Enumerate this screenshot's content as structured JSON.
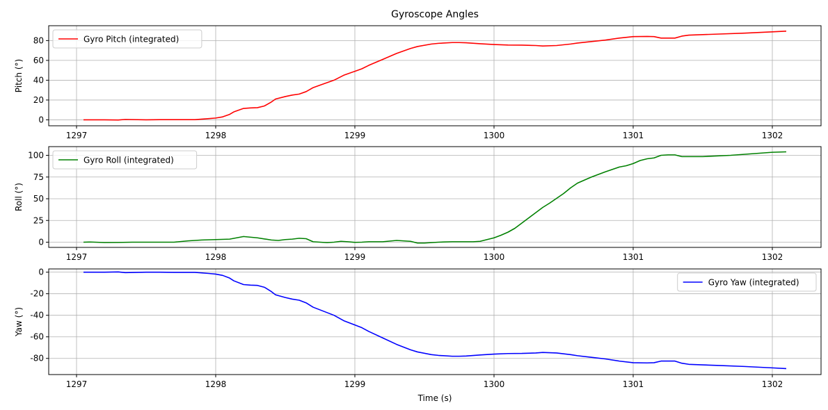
{
  "chart_data": [
    {
      "type": "line",
      "title": "Gyroscope Angles",
      "xlabel": "",
      "ylabel": "Pitch (°)",
      "xlim": [
        1296.8,
        1302.35
      ],
      "ylim": [
        -6,
        95
      ],
      "xticks": [
        1297,
        1298,
        1299,
        1300,
        1301,
        1302
      ],
      "yticks": [
        0,
        20,
        40,
        60,
        80
      ],
      "grid": true,
      "legend": "upper left",
      "series": [
        {
          "name": "Gyro Pitch (integrated)",
          "color": "#ff0000",
          "x": [
            1297.05,
            1297.2,
            1297.3,
            1297.35,
            1297.5,
            1297.6,
            1297.7,
            1297.85,
            1297.95,
            1298.0,
            1298.05,
            1298.1,
            1298.13,
            1298.2,
            1298.25,
            1298.3,
            1298.35,
            1298.4,
            1298.43,
            1298.5,
            1298.55,
            1298.6,
            1298.65,
            1298.7,
            1298.75,
            1298.85,
            1298.92,
            1299.0,
            1299.05,
            1299.1,
            1299.2,
            1299.3,
            1299.4,
            1299.45,
            1299.55,
            1299.6,
            1299.7,
            1299.75,
            1299.8,
            1299.9,
            1300.0,
            1300.1,
            1300.2,
            1300.3,
            1300.35,
            1300.45,
            1300.55,
            1300.6,
            1300.7,
            1300.8,
            1300.9,
            1301.0,
            1301.1,
            1301.15,
            1301.2,
            1301.25,
            1301.3,
            1301.35,
            1301.4,
            1301.5,
            1301.6,
            1301.8,
            1302.0,
            1302.1
          ],
          "y": [
            0,
            0,
            -0.2,
            0.4,
            0,
            0.2,
            0.2,
            0.2,
            1.2,
            1.8,
            3,
            5.5,
            8,
            11.5,
            12,
            12.3,
            14,
            18,
            21,
            23.5,
            25,
            26,
            28.5,
            32.5,
            35,
            40,
            45,
            49,
            51.5,
            55,
            61,
            67,
            72,
            74,
            76.5,
            77.2,
            78,
            78,
            77.8,
            76.8,
            76,
            75.5,
            75.4,
            75,
            74.5,
            75,
            76.5,
            77.5,
            79,
            80.5,
            82.5,
            84,
            84.2,
            84,
            82.5,
            82.5,
            82.5,
            84.5,
            85.5,
            86,
            86.5,
            87.5,
            88.8,
            89.5
          ]
        }
      ]
    },
    {
      "type": "line",
      "title": "",
      "xlabel": "",
      "ylabel": "Roll (°)",
      "xlim": [
        1296.8,
        1302.35
      ],
      "ylim": [
        -6,
        110
      ],
      "xticks": [
        1297,
        1298,
        1299,
        1300,
        1301,
        1302
      ],
      "yticks": [
        0,
        25,
        50,
        75,
        100
      ],
      "grid": true,
      "legend": "upper left",
      "series": [
        {
          "name": "Gyro Roll (integrated)",
          "color": "#008000",
          "x": [
            1297.05,
            1297.1,
            1297.2,
            1297.3,
            1297.4,
            1297.5,
            1297.6,
            1297.7,
            1297.8,
            1297.9,
            1298.0,
            1298.1,
            1298.2,
            1298.3,
            1298.4,
            1298.45,
            1298.5,
            1298.55,
            1298.6,
            1298.65,
            1298.7,
            1298.75,
            1298.8,
            1298.85,
            1298.9,
            1298.95,
            1299.0,
            1299.05,
            1299.1,
            1299.2,
            1299.3,
            1299.4,
            1299.45,
            1299.5,
            1299.6,
            1299.7,
            1299.8,
            1299.85,
            1299.9,
            1300.0,
            1300.05,
            1300.1,
            1300.15,
            1300.2,
            1300.25,
            1300.3,
            1300.35,
            1300.4,
            1300.5,
            1300.55,
            1300.6,
            1300.7,
            1300.8,
            1300.9,
            1300.95,
            1301.0,
            1301.05,
            1301.1,
            1301.15,
            1301.2,
            1301.25,
            1301.3,
            1301.35,
            1301.5,
            1301.7,
            1302.0,
            1302.1
          ],
          "y": [
            0,
            0.2,
            -0.4,
            -0.3,
            0,
            0,
            0,
            0,
            1.5,
            2.5,
            3,
            3.5,
            6.5,
            5,
            2.5,
            2,
            3,
            3.5,
            4.5,
            4,
            0.5,
            0,
            -0.5,
            0,
            1,
            0.5,
            -0.2,
            0,
            0.5,
            0.5,
            2,
            1,
            -1,
            -1,
            0,
            0.5,
            0.5,
            0.5,
            1,
            5,
            8,
            11.5,
            16,
            22,
            28,
            34,
            40,
            45,
            56,
            62.5,
            68,
            75,
            81,
            86.5,
            88,
            90.5,
            94,
            96,
            97,
            100,
            100.5,
            100.5,
            98.5,
            98.5,
            100,
            103.5,
            104
          ]
        }
      ]
    },
    {
      "type": "line",
      "title": "",
      "xlabel": "Time (s)",
      "ylabel": "Yaw (°)",
      "xlim": [
        1296.8,
        1302.35
      ],
      "ylim": [
        -95,
        3
      ],
      "xticks": [
        1297,
        1298,
        1299,
        1300,
        1301,
        1302
      ],
      "yticks": [
        0,
        -20,
        -40,
        -60,
        -80
      ],
      "grid": true,
      "legend": "upper right",
      "series": [
        {
          "name": "Gyro Yaw (integrated)",
          "color": "#0000ff",
          "x": [
            1297.05,
            1297.2,
            1297.3,
            1297.35,
            1297.5,
            1297.6,
            1297.7,
            1297.85,
            1297.95,
            1298.0,
            1298.05,
            1298.1,
            1298.13,
            1298.2,
            1298.25,
            1298.3,
            1298.35,
            1298.4,
            1298.43,
            1298.5,
            1298.55,
            1298.6,
            1298.65,
            1298.7,
            1298.75,
            1298.85,
            1298.92,
            1299.0,
            1299.05,
            1299.1,
            1299.2,
            1299.3,
            1299.4,
            1299.45,
            1299.55,
            1299.6,
            1299.7,
            1299.75,
            1299.8,
            1299.9,
            1300.0,
            1300.1,
            1300.2,
            1300.3,
            1300.35,
            1300.45,
            1300.55,
            1300.6,
            1300.7,
            1300.8,
            1300.9,
            1301.0,
            1301.1,
            1301.15,
            1301.2,
            1301.25,
            1301.3,
            1301.35,
            1301.4,
            1301.5,
            1301.6,
            1301.8,
            1302.0,
            1302.1
          ],
          "y": [
            0,
            0,
            0.2,
            -0.4,
            0,
            0,
            -0.2,
            -0.2,
            -1.2,
            -1.8,
            -3,
            -5.5,
            -8,
            -11.5,
            -12,
            -12.3,
            -14,
            -18,
            -21,
            -23.5,
            -25,
            -26,
            -28.5,
            -32.5,
            -35,
            -40,
            -45,
            -49,
            -51.5,
            -55,
            -61,
            -67,
            -72,
            -74,
            -76.5,
            -77.2,
            -78,
            -78,
            -77.8,
            -76.8,
            -76,
            -75.5,
            -75.4,
            -75,
            -74.5,
            -75,
            -76.5,
            -77.5,
            -79,
            -80.5,
            -82.5,
            -84,
            -84.2,
            -84,
            -82.5,
            -82.5,
            -82.5,
            -84.5,
            -85.5,
            -86,
            -86.5,
            -87.5,
            -88.8,
            -89.5
          ]
        }
      ]
    }
  ]
}
